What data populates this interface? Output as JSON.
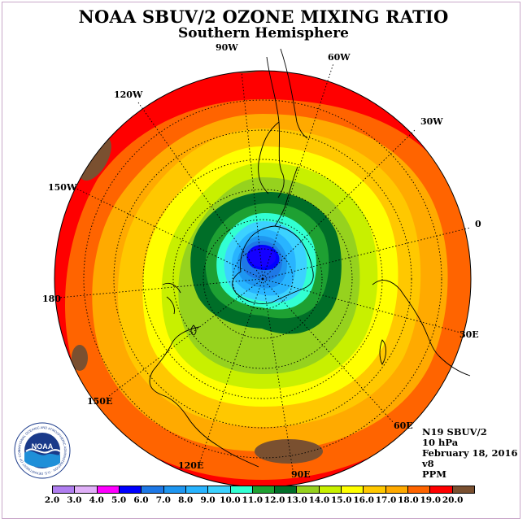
{
  "header": {
    "title": "NOAA SBUV/2 OZONE MIXING RATIO",
    "subtitle": "Southern Hemisphere"
  },
  "longitude_labels": [
    {
      "id": "90w",
      "text": "90W"
    },
    {
      "id": "60w",
      "text": "60W"
    },
    {
      "id": "120w",
      "text": "120W"
    },
    {
      "id": "30w",
      "text": "30W"
    },
    {
      "id": "150w",
      "text": "150W"
    },
    {
      "id": "0",
      "text": "0"
    },
    {
      "id": "180",
      "text": "180"
    },
    {
      "id": "30e",
      "text": "30E"
    },
    {
      "id": "150e",
      "text": "150E"
    },
    {
      "id": "60e",
      "text": "60E"
    },
    {
      "id": "120e",
      "text": "120E"
    },
    {
      "id": "90e",
      "text": "90E"
    }
  ],
  "info": {
    "satellite": "N19 SBUV/2",
    "level": "10 hPa",
    "date": "February 18, 2016",
    "version": "v8",
    "units": "PPM"
  },
  "logo": {
    "text": "NOAA",
    "ring_text": "NATIONAL OCEANIC AND ATMOSPHERIC ADMINISTRATION · U.S. DEPARTMENT OF COMMERCE"
  },
  "colorbar": {
    "ticks": [
      "2.0",
      "3.0",
      "4.0",
      "5.0",
      "6.0",
      "7.0",
      "8.0",
      "9.0",
      "10.0",
      "11.0",
      "12.0",
      "13.0",
      "14.0",
      "15.0",
      "16.0",
      "17.0",
      "18.0",
      "19.0",
      "20.0"
    ],
    "colors": [
      "#b07ef0",
      "#e0b0f8",
      "#ff00ff",
      "#0000ff",
      "#1e78e6",
      "#1e96f0",
      "#28b4ff",
      "#3cd2ff",
      "#32ffd2",
      "#1ea032",
      "#006e28",
      "#96d21e",
      "#c8f000",
      "#ffff00",
      "#ffc800",
      "#ffaa00",
      "#ff6400",
      "#ff0000",
      "#7a5030"
    ]
  },
  "map_colors": {
    "ocean_ring": "#ff1400",
    "min_core": "#1400ff"
  }
}
